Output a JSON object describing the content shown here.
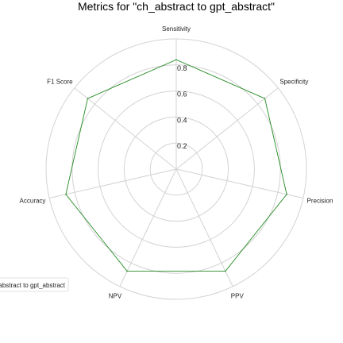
{
  "chart_data": {
    "type": "radar",
    "title": "Metrics for \"ch_abstract to gpt_abstract\"",
    "axes": [
      "Sensitivity",
      "Specificity",
      "Precision",
      "PPV",
      "NPV",
      "Accuracy",
      "F1 Score"
    ],
    "rlim": [
      0,
      1
    ],
    "rticks": [
      0.2,
      0.4,
      0.6,
      0.8
    ],
    "rtick_labels": [
      "0.2",
      "0.4",
      "0.6",
      "0.8"
    ],
    "grid": true,
    "series": [
      {
        "name": "ch_abstract to gpt_abstract",
        "color": "#228B22",
        "values": [
          0.84,
          0.87,
          0.87,
          0.87,
          0.87,
          0.87,
          0.87
        ]
      }
    ],
    "legend": {
      "position": "bottom-left",
      "text": "ch_abstract to gpt_abstract"
    }
  }
}
